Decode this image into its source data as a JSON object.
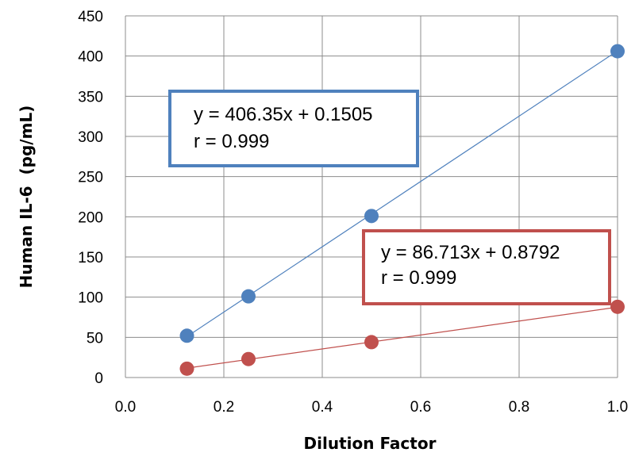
{
  "chart_data": {
    "type": "scatter",
    "title": "",
    "xlabel": "Dilution Factor",
    "ylabel": "Human IL-6  (pg/mL)",
    "xlim": [
      0.0,
      1.0
    ],
    "ylim": [
      0,
      450
    ],
    "x_ticks": [
      "0.0",
      "0.2",
      "0.4",
      "0.6",
      "0.8",
      "1.0"
    ],
    "y_ticks": [
      "0",
      "50",
      "100",
      "150",
      "200",
      "250",
      "300",
      "350",
      "400",
      "450"
    ],
    "grid": true,
    "legend": "none",
    "series": [
      {
        "color": "#4f81bd",
        "x": [
          0.125,
          0.25,
          0.5,
          1.0
        ],
        "y": [
          52,
          101,
          201,
          406
        ],
        "trendline": {
          "slope": 406.35,
          "intercept": 0.1505
        }
      },
      {
        "color": "#c0504d",
        "x": [
          0.125,
          0.25,
          0.5,
          1.0
        ],
        "y": [
          11,
          23,
          44,
          88
        ],
        "trendline": {
          "slope": 86.713,
          "intercept": 0.8792
        }
      }
    ],
    "annotations": [
      {
        "series": 0,
        "equation": "y = 406.35x + 0.1505",
        "r": "r = 0.999",
        "border_color": "#4f81bd"
      },
      {
        "series": 1,
        "equation": "y = 86.713x + 0.8792",
        "r": "r = 0.999",
        "border_color": "#c0504d"
      }
    ]
  }
}
